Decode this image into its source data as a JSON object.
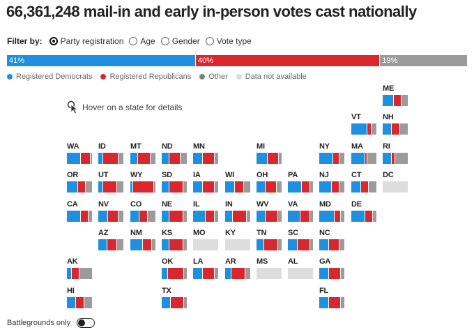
{
  "title": "66,361,248 mail-in and early in-person votes cast nationally",
  "filter": {
    "label": "Filter by:",
    "options": [
      {
        "label": "Party registration",
        "selected": true
      },
      {
        "label": "Age",
        "selected": false
      },
      {
        "label": "Gender",
        "selected": false
      },
      {
        "label": "Vote type",
        "selected": false
      }
    ]
  },
  "national_bar": [
    {
      "label": "41%",
      "value": 41,
      "color": "#1f8fdf"
    },
    {
      "label": "40%",
      "value": 40,
      "color": "#d9272e"
    },
    {
      "label": "19%",
      "value": 19,
      "color": "#9b9b9b"
    }
  ],
  "legend": [
    {
      "label": "Registered Democrats",
      "color": "#1f8fdf"
    },
    {
      "label": "Registered Republicans",
      "color": "#d9272e"
    },
    {
      "label": "Other",
      "color": "#7f7f7f"
    },
    {
      "label": "Data not available",
      "color": "#dddddd"
    }
  ],
  "hover_hint": "Hover on a state for details",
  "colors": {
    "dem": "#1f8fdf",
    "rep": "#d9272e",
    "other": "#9b9b9b",
    "na": "#dddddd"
  },
  "states": [
    {
      "abbr": "ME",
      "row": 0,
      "col": 10,
      "shares": [
        0.45,
        0.3,
        0.25
      ]
    },
    {
      "abbr": "VT",
      "row": 1,
      "col": 9,
      "shares": [
        0.65,
        0.15,
        0.2
      ]
    },
    {
      "abbr": "NH",
      "row": 1,
      "col": 10,
      "shares": [
        0.35,
        0.35,
        0.3
      ]
    },
    {
      "abbr": "WA",
      "row": 2,
      "col": 0,
      "shares": [
        0.55,
        0.4,
        0.05
      ]
    },
    {
      "abbr": "ID",
      "row": 2,
      "col": 1,
      "shares": [
        0.2,
        0.6,
        0.2
      ]
    },
    {
      "abbr": "MT",
      "row": 2,
      "col": 2,
      "shares": [
        0.3,
        0.5,
        0.2
      ]
    },
    {
      "abbr": "ND",
      "row": 2,
      "col": 3,
      "shares": [
        0.3,
        0.45,
        0.25
      ]
    },
    {
      "abbr": "MN",
      "row": 2,
      "col": 4,
      "shares": [
        0.4,
        0.45,
        0.15
      ]
    },
    {
      "abbr": "MI",
      "row": 2,
      "col": 6,
      "shares": [
        0.45,
        0.45,
        0.1
      ]
    },
    {
      "abbr": "NY",
      "row": 2,
      "col": 8,
      "shares": [
        0.55,
        0.25,
        0.2
      ]
    },
    {
      "abbr": "MA",
      "row": 2,
      "col": 9,
      "shares": [
        0.55,
        0.1,
        0.35
      ]
    },
    {
      "abbr": "RI",
      "row": 2,
      "col": 10,
      "shares": [
        0.35,
        0.15,
        0.5
      ]
    },
    {
      "abbr": "OR",
      "row": 3,
      "col": 0,
      "shares": [
        0.45,
        0.3,
        0.25
      ]
    },
    {
      "abbr": "UT",
      "row": 3,
      "col": 1,
      "shares": [
        0.2,
        0.55,
        0.25
      ]
    },
    {
      "abbr": "WY",
      "row": 3,
      "col": 2,
      "shares": [
        0.1,
        0.85,
        0.05
      ]
    },
    {
      "abbr": "SD",
      "row": 3,
      "col": 3,
      "shares": [
        0.3,
        0.55,
        0.15
      ]
    },
    {
      "abbr": "IA",
      "row": 3,
      "col": 4,
      "shares": [
        0.4,
        0.45,
        0.15
      ]
    },
    {
      "abbr": "WI",
      "row": 3,
      "col": 5,
      "shares": [
        0.4,
        0.35,
        0.25
      ]
    },
    {
      "abbr": "OH",
      "row": 3,
      "col": 6,
      "shares": [
        0.35,
        0.45,
        0.2
      ]
    },
    {
      "abbr": "PA",
      "row": 3,
      "col": 7,
      "shares": [
        0.55,
        0.35,
        0.1
      ]
    },
    {
      "abbr": "NJ",
      "row": 3,
      "col": 8,
      "shares": [
        0.5,
        0.3,
        0.2
      ]
    },
    {
      "abbr": "CT",
      "row": 3,
      "col": 9,
      "shares": [
        0.4,
        0.3,
        0.3
      ]
    },
    {
      "abbr": "DC",
      "row": 3,
      "col": 10,
      "na": true
    },
    {
      "abbr": "CA",
      "row": 4,
      "col": 0,
      "shares": [
        0.55,
        0.3,
        0.15
      ]
    },
    {
      "abbr": "NV",
      "row": 4,
      "col": 1,
      "shares": [
        0.4,
        0.4,
        0.2
      ]
    },
    {
      "abbr": "CO",
      "row": 4,
      "col": 2,
      "shares": [
        0.35,
        0.35,
        0.3
      ]
    },
    {
      "abbr": "NE",
      "row": 4,
      "col": 3,
      "shares": [
        0.3,
        0.55,
        0.15
      ]
    },
    {
      "abbr": "IL",
      "row": 4,
      "col": 4,
      "shares": [
        0.5,
        0.35,
        0.15
      ]
    },
    {
      "abbr": "IN",
      "row": 4,
      "col": 5,
      "shares": [
        0.3,
        0.55,
        0.15
      ]
    },
    {
      "abbr": "WV",
      "row": 4,
      "col": 6,
      "shares": [
        0.35,
        0.5,
        0.15
      ]
    },
    {
      "abbr": "VA",
      "row": 4,
      "col": 7,
      "shares": [
        0.5,
        0.4,
        0.1
      ]
    },
    {
      "abbr": "MD",
      "row": 4,
      "col": 8,
      "shares": [
        0.6,
        0.25,
        0.15
      ]
    },
    {
      "abbr": "DE",
      "row": 4,
      "col": 9,
      "shares": [
        0.55,
        0.3,
        0.15
      ]
    },
    {
      "abbr": "AZ",
      "row": 5,
      "col": 1,
      "shares": [
        0.35,
        0.4,
        0.25
      ]
    },
    {
      "abbr": "NM",
      "row": 5,
      "col": 2,
      "shares": [
        0.5,
        0.35,
        0.15
      ]
    },
    {
      "abbr": "KS",
      "row": 5,
      "col": 3,
      "shares": [
        0.3,
        0.55,
        0.15
      ]
    },
    {
      "abbr": "MO",
      "row": 5,
      "col": 4,
      "na": true
    },
    {
      "abbr": "KY",
      "row": 5,
      "col": 5,
      "na": true
    },
    {
      "abbr": "TN",
      "row": 5,
      "col": 6,
      "shares": [
        0.3,
        0.55,
        0.15
      ]
    },
    {
      "abbr": "SC",
      "row": 5,
      "col": 7,
      "shares": [
        0.4,
        0.5,
        0.1
      ]
    },
    {
      "abbr": "NC",
      "row": 5,
      "col": 8,
      "shares": [
        0.4,
        0.4,
        0.2
      ]
    },
    {
      "abbr": "AK",
      "row": 6,
      "col": 0,
      "shares": [
        0.2,
        0.3,
        0.5
      ]
    },
    {
      "abbr": "OK",
      "row": 6,
      "col": 3,
      "shares": [
        0.25,
        0.65,
        0.1
      ]
    },
    {
      "abbr": "LA",
      "row": 6,
      "col": 4,
      "shares": [
        0.4,
        0.45,
        0.15
      ]
    },
    {
      "abbr": "AR",
      "row": 6,
      "col": 5,
      "shares": [
        0.25,
        0.55,
        0.2
      ]
    },
    {
      "abbr": "MS",
      "row": 6,
      "col": 6,
      "na": true
    },
    {
      "abbr": "AL",
      "row": 6,
      "col": 7,
      "na": true
    },
    {
      "abbr": "GA",
      "row": 6,
      "col": 8,
      "shares": [
        0.4,
        0.45,
        0.15
      ]
    },
    {
      "abbr": "HI",
      "row": 7,
      "col": 0,
      "shares": [
        0.35,
        0.35,
        0.3
      ]
    },
    {
      "abbr": "TX",
      "row": 7,
      "col": 3,
      "shares": [
        0.35,
        0.55,
        0.1
      ]
    },
    {
      "abbr": "FL",
      "row": 7,
      "col": 8,
      "shares": [
        0.4,
        0.45,
        0.15
      ]
    }
  ],
  "battlegrounds": {
    "label": "Battlegrounds only",
    "on": false
  }
}
